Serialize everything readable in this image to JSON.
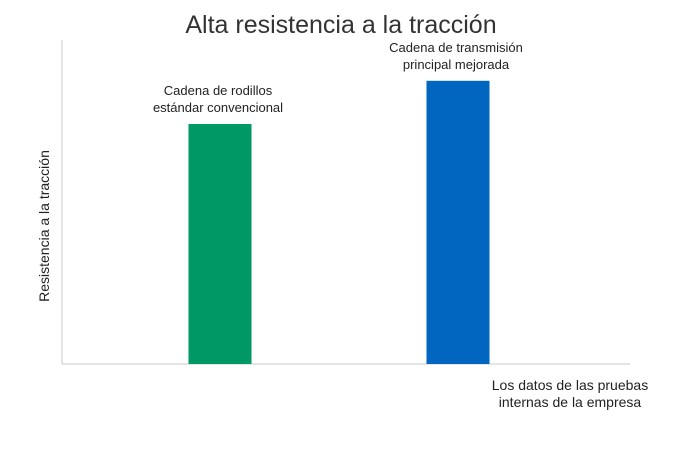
{
  "chart_data": {
    "type": "bar",
    "title": "Alta resistencia a la tracción",
    "xlabel": "",
    "ylabel": "Resistencia a la tracción",
    "categories": [
      "Cadena de rodillos estándar convencional",
      "Cadena de transmisión principal mejorada"
    ],
    "category_label_lines": [
      [
        "Cadena de rodillos",
        "estándar convencional"
      ],
      [
        "Cadena de transmisión",
        "principal mejorada"
      ]
    ],
    "values": [
      100,
      118
    ],
    "bar_colors": [
      "#009966",
      "#0066c0"
    ],
    "ylim": [
      0,
      135
    ],
    "grid": false,
    "legend": "none",
    "note_lines": [
      "Los datos de las pruebas",
      "internas de la empresa"
    ]
  },
  "colors": {
    "axis": "#c8c8c8",
    "title": "#333333",
    "text": "#222222"
  }
}
